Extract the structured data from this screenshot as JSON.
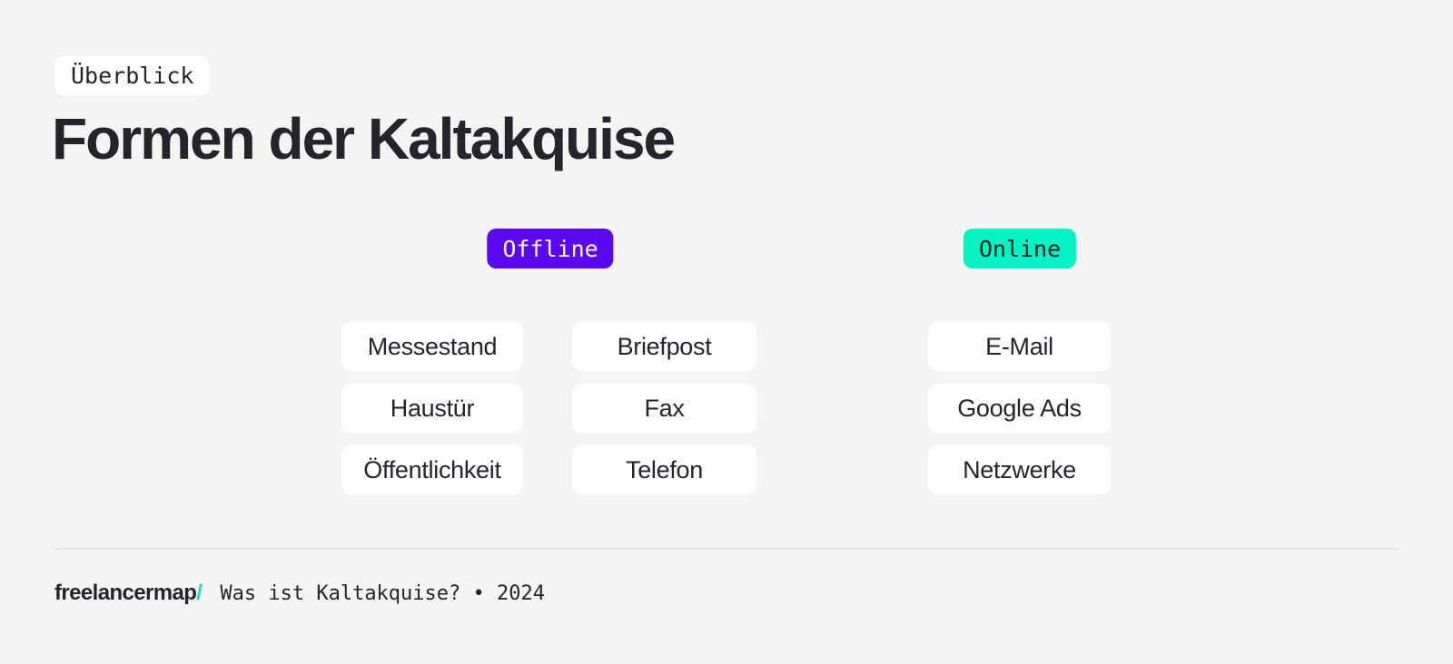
{
  "theme": {
    "background": "#f4f4f3",
    "surface": "#ffffff",
    "text": "#26242b",
    "accent_purple": "#5a07f2",
    "accent_mint": "#05f2c4",
    "divider": "#e6e5e4"
  },
  "header": {
    "eyebrow": "Überblick",
    "title": "Formen der Kaltakquise"
  },
  "groups": [
    {
      "label": "Offline",
      "columns": [
        [
          "Messestand",
          "Haustür",
          "Öffentlichkeit"
        ],
        [
          "Briefpost",
          "Fax",
          "Telefon"
        ]
      ]
    },
    {
      "label": "Online",
      "columns": [
        [
          "E-Mail",
          "Google Ads",
          "Netzwerke"
        ]
      ]
    }
  ],
  "footer": {
    "brand": "freelancermap",
    "brand_slash": "/",
    "caption": "Was ist Kaltakquise? • 2024"
  }
}
